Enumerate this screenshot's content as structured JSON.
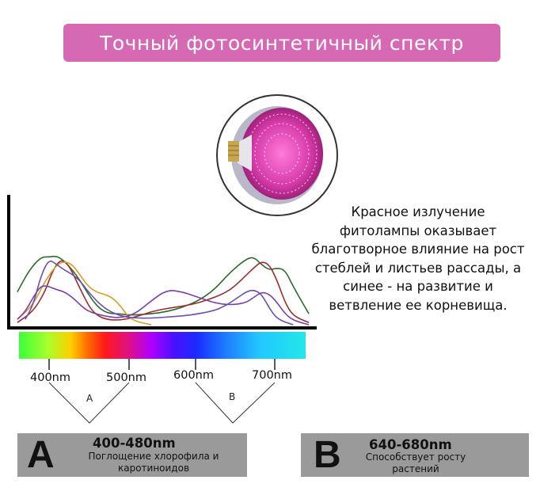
{
  "banner": {
    "title": "Точный фотосинтетичный спектр"
  },
  "description": "Красное излучение фитолампы оказывает благотворное влияние на рост стеблей и листьев рассады, а синее - на развитие и ветвление ее корневища.",
  "chart_data": {
    "type": "line",
    "x_tick_labels": [
      "400nm",
      "500nm",
      "600nm",
      "700nm"
    ],
    "x_ticks": [
      400,
      500,
      600,
      700
    ],
    "xlim": [
      360,
      750
    ],
    "ylim": [
      0,
      1
    ],
    "series": [
      {
        "color": "#2e6b2e",
        "x": [
          370,
          385,
          400,
          410,
          420,
          430,
          440,
          450,
          460,
          470,
          480,
          490,
          500,
          510,
          520,
          540,
          560,
          580,
          600,
          620,
          640,
          660,
          670,
          680,
          690,
          700,
          710,
          720,
          740
        ],
        "y": [
          0.3,
          0.5,
          0.62,
          0.62,
          0.63,
          0.58,
          0.5,
          0.4,
          0.28,
          0.18,
          0.12,
          0.1,
          0.1,
          0.09,
          0.09,
          0.1,
          0.12,
          0.16,
          0.22,
          0.32,
          0.48,
          0.6,
          0.62,
          0.55,
          0.5,
          0.52,
          0.5,
          0.35,
          0.1
        ]
      },
      {
        "color": "#9b2f2f",
        "x": [
          370,
          390,
          405,
          415,
          425,
          435,
          445,
          455,
          465,
          480,
          500,
          520,
          540,
          560,
          580,
          600,
          620,
          630,
          640,
          650,
          660,
          670,
          680,
          690,
          700,
          710,
          720,
          740
        ],
        "y": [
          0.02,
          0.12,
          0.3,
          0.5,
          0.6,
          0.55,
          0.4,
          0.25,
          0.12,
          0.05,
          0.04,
          0.07,
          0.12,
          0.15,
          0.17,
          0.2,
          0.25,
          0.28,
          0.32,
          0.38,
          0.45,
          0.52,
          0.58,
          0.55,
          0.4,
          0.2,
          0.08,
          0.02
        ]
      },
      {
        "color": "#d59d2a",
        "x": [
          370,
          390,
          405,
          420,
          430,
          440,
          450,
          460,
          470,
          480,
          490,
          500,
          510,
          520,
          540
        ],
        "y": [
          0.05,
          0.18,
          0.4,
          0.55,
          0.58,
          0.55,
          0.45,
          0.35,
          0.3,
          0.28,
          0.25,
          0.18,
          0.08,
          0.03,
          0.0
        ]
      },
      {
        "color": "#7a3ea8",
        "x": [
          370,
          380,
          390,
          400,
          410,
          420,
          430,
          440,
          450,
          460,
          480,
          500,
          520,
          540,
          560,
          580,
          600,
          620,
          640,
          660,
          670,
          680,
          690,
          700,
          710,
          720,
          740
        ],
        "y": [
          0.05,
          0.12,
          0.25,
          0.36,
          0.35,
          0.32,
          0.3,
          0.25,
          0.18,
          0.12,
          0.08,
          0.06,
          0.1,
          0.22,
          0.32,
          0.3,
          0.25,
          0.2,
          0.18,
          0.2,
          0.25,
          0.3,
          0.28,
          0.2,
          0.1,
          0.04,
          0.0
        ]
      },
      {
        "color": "#6a4fb0",
        "x": [
          380,
          390,
          400,
          410,
          420,
          430,
          440,
          450,
          460,
          480,
          500,
          520,
          540,
          560,
          580,
          600,
          620,
          630,
          640,
          650,
          660,
          670,
          680,
          690,
          700,
          720
        ],
        "y": [
          0.05,
          0.18,
          0.45,
          0.6,
          0.55,
          0.5,
          0.46,
          0.4,
          0.3,
          0.15,
          0.08,
          0.06,
          0.06,
          0.07,
          0.08,
          0.1,
          0.13,
          0.16,
          0.2,
          0.25,
          0.3,
          0.32,
          0.28,
          0.15,
          0.05,
          0.0
        ]
      }
    ]
  },
  "annotations": {
    "bracket_a_letter": "A",
    "bracket_b_letter": "B"
  },
  "box_a": {
    "letter": "A",
    "range": "400-480nm",
    "text_line1": "Поглощение хлорофила и",
    "text_line2": "каротиноидов"
  },
  "box_b": {
    "letter": "B",
    "range": "640-680nm",
    "text_line1": "Способствует росту",
    "text_line2": "растений"
  },
  "colors": {
    "banner": "#d569b4",
    "box": "#9a9a9a"
  }
}
